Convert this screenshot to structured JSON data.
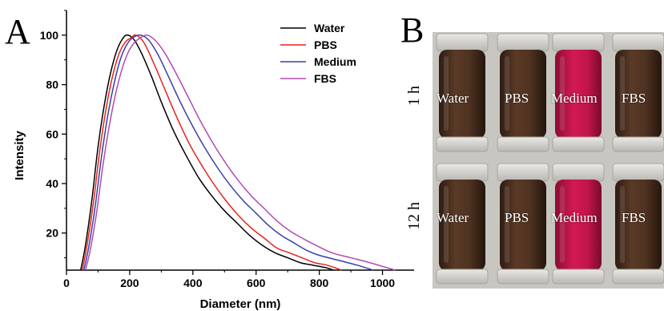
{
  "panelA": {
    "letter": "A",
    "chart_data": {
      "type": "line",
      "xlabel": "Diameter (nm)",
      "ylabel": "Intensity",
      "xlim": [
        0,
        1100
      ],
      "ylim": [
        5,
        110
      ],
      "xticks": [
        0,
        200,
        400,
        600,
        800,
        1000
      ],
      "yticks": [
        20,
        40,
        60,
        80,
        100
      ],
      "legend_position": "top-right",
      "series": [
        {
          "name": "Water",
          "color": "#000000",
          "x": [
            45,
            60,
            80,
            100,
            120,
            140,
            160,
            180,
            195,
            215,
            240,
            270,
            300,
            340,
            380,
            420,
            460,
            500,
            540,
            580,
            620,
            660,
            700,
            740,
            780,
            820,
            845
          ],
          "y": [
            5,
            15,
            33,
            55,
            72,
            85,
            94,
            99,
            100,
            98,
            92,
            83,
            73,
            61,
            51,
            42,
            35,
            29,
            24,
            19,
            15,
            12,
            10,
            8,
            7,
            6,
            5
          ]
        },
        {
          "name": "PBS",
          "color": "#e8221c",
          "x": [
            50,
            65,
            85,
            105,
            125,
            145,
            165,
            185,
            205,
            220,
            245,
            275,
            305,
            345,
            385,
            425,
            465,
            505,
            545,
            585,
            625,
            665,
            705,
            745,
            785,
            825,
            870
          ],
          "y": [
            5,
            15,
            32,
            53,
            70,
            83,
            92,
            97,
            99,
            100,
            97,
            89,
            80,
            68,
            57,
            48,
            40,
            33,
            27,
            22,
            18,
            14,
            12,
            10,
            8,
            7,
            5
          ]
        },
        {
          "name": "Medium",
          "color": "#3a3fa8",
          "x": [
            55,
            70,
            90,
            110,
            130,
            150,
            170,
            190,
            210,
            235,
            260,
            290,
            320,
            360,
            400,
            440,
            480,
            520,
            560,
            600,
            640,
            680,
            720,
            760,
            800,
            860,
            920,
            970
          ],
          "y": [
            5,
            14,
            30,
            50,
            67,
            80,
            90,
            96,
            99,
            100,
            98,
            92,
            84,
            73,
            63,
            54,
            46,
            39,
            33,
            28,
            23,
            19,
            16,
            13,
            11,
            9,
            7,
            5
          ]
        },
        {
          "name": "FBS",
          "color": "#b24ab2",
          "x": [
            60,
            75,
            95,
            115,
            135,
            155,
            175,
            195,
            215,
            235,
            255,
            280,
            310,
            345,
            385,
            425,
            465,
            505,
            545,
            585,
            625,
            665,
            705,
            745,
            790,
            840,
            900,
            960,
            1040
          ],
          "y": [
            5,
            13,
            28,
            47,
            63,
            76,
            86,
            93,
            97,
            99,
            100,
            98,
            93,
            85,
            75,
            65,
            56,
            48,
            41,
            35,
            30,
            25,
            21,
            18,
            15,
            12,
            10,
            8,
            5
          ]
        }
      ]
    }
  },
  "panelB": {
    "letter": "B",
    "rows": [
      {
        "time": "1 h",
        "labels": [
          "Water",
          "PBS",
          "Medium",
          "FBS"
        ]
      },
      {
        "time": "12 h",
        "labels": [
          "Water",
          "PBS",
          "Medium",
          "FBS"
        ]
      }
    ],
    "colors": {
      "brown": "#4a2f1f",
      "medium": "#c0164a",
      "background": "#c9c7c3"
    }
  }
}
